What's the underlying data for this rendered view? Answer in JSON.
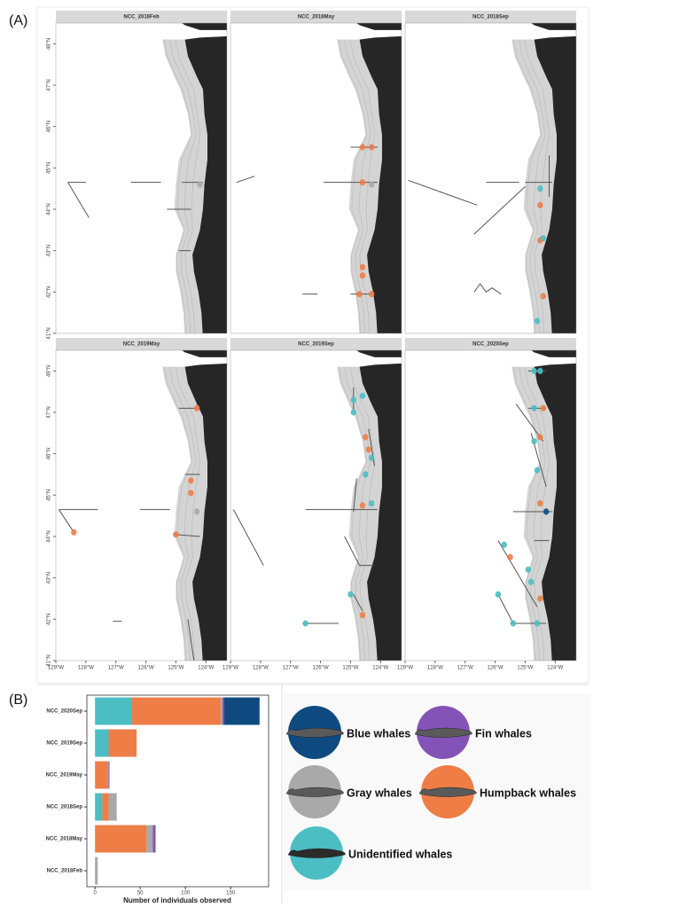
{
  "chart_data": [
    {
      "type": "map",
      "panel_label": "(A)",
      "xlim": [
        -129,
        -123.3
      ],
      "ylim": [
        41,
        48.5
      ],
      "xticks": [
        {
          "value": -129,
          "label": "129°W"
        },
        {
          "value": -128,
          "label": "128°W"
        },
        {
          "value": -127,
          "label": "127°W"
        },
        {
          "value": -126,
          "label": "126°W"
        },
        {
          "value": -125,
          "label": "125°W"
        },
        {
          "value": -124,
          "label": "124°W"
        }
      ],
      "yticks": [
        {
          "value": 41,
          "label": "41°N"
        },
        {
          "value": 42,
          "label": "42°N"
        },
        {
          "value": 43,
          "label": "43°N"
        },
        {
          "value": 44,
          "label": "44°N"
        },
        {
          "value": 45,
          "label": "45°N"
        },
        {
          "value": 46,
          "label": "46°N"
        },
        {
          "value": 47,
          "label": "47°N"
        },
        {
          "value": 48,
          "label": "48°N"
        }
      ],
      "land_color": "#262626",
      "shelf_color": "#d4d4d4",
      "facets": [
        {
          "title": "NCC_2018Feb",
          "x": [
            -124.2
          ],
          "y": [
            44.6
          ],
          "colors": [
            "#a9a9a9"
          ]
        },
        {
          "title": "NCC_2018May",
          "x": [
            -124.6,
            -124.3,
            -124.6,
            -124.3,
            -124.6,
            -124.6,
            -124.7,
            -124.3
          ],
          "y": [
            45.5,
            45.5,
            44.65,
            44.6,
            42.6,
            42.4,
            41.95,
            41.95
          ],
          "colors": [
            "#ee7d46",
            "#ee7d46",
            "#ee7d46",
            "#a9a9a9",
            "#ee7d46",
            "#ee7d46",
            "#ee7d46",
            "#ee7d46"
          ]
        },
        {
          "title": "NCC_2018Sep",
          "x": [
            -124.5,
            -124.5,
            -124.5,
            -124.4,
            -124.4,
            -124.6
          ],
          "y": [
            44.5,
            44.1,
            43.25,
            43.3,
            41.9,
            41.3
          ],
          "colors": [
            "#4bbec4",
            "#ee7d46",
            "#ee7d46",
            "#4bbec4",
            "#ee7d46",
            "#4bbec4"
          ]
        },
        {
          "title": "NCC_2019May",
          "x": [
            -124.3,
            -124.5,
            -124.5,
            -124.3,
            -125.0,
            -128.4
          ],
          "y": [
            47.1,
            45.35,
            45.05,
            44.6,
            44.05,
            44.1
          ],
          "colors": [
            "#ee7d46",
            "#ee7d46",
            "#ee7d46",
            "#a9a9a9",
            "#ee7d46",
            "#ee7d46"
          ]
        },
        {
          "title": "NCC_2019Sep",
          "x": [
            -124.6,
            -124.9,
            -124.9,
            -124.5,
            -124.4,
            -124.3,
            -124.5,
            -124.6,
            -124.3,
            -125.0,
            -124.6,
            -126.5
          ],
          "y": [
            47.4,
            47.3,
            47.0,
            46.4,
            46.1,
            45.9,
            45.5,
            44.75,
            44.8,
            42.6,
            42.1,
            41.9
          ],
          "colors": [
            "#4bbec4",
            "#4bbec4",
            "#4bbec4",
            "#ee7d46",
            "#ee7d46",
            "#4bbec4",
            "#4bbec4",
            "#ee7d46",
            "#4bbec4",
            "#4bbec4",
            "#ee7d46",
            "#4bbec4"
          ]
        },
        {
          "title": "NCC_2020Sep",
          "x": [
            -124.7,
            -124.5,
            -124.7,
            -124.4,
            -124.5,
            -124.7,
            -124.6,
            -124.5,
            -124.3,
            -125.7,
            -125.5,
            -124.9,
            -124.8,
            -124.5,
            -125.9,
            -125.4,
            -124.6
          ],
          "y": [
            48.0,
            48.0,
            47.1,
            47.1,
            46.4,
            46.3,
            45.6,
            44.8,
            44.6,
            43.8,
            43.5,
            43.2,
            42.9,
            42.5,
            42.6,
            41.9,
            41.9
          ],
          "colors": [
            "#4bbec4",
            "#4bbec4",
            "#4bbec4",
            "#ee7d46",
            "#ee7d46",
            "#4bbec4",
            "#4bbec4",
            "#ee7d46",
            "#0e4a80",
            "#4bbec4",
            "#ee7d46",
            "#4bbec4",
            "#4bbec4",
            "#ee7d46",
            "#4bbec4",
            "#4bbec4",
            "#4bbec4"
          ]
        }
      ]
    },
    {
      "type": "bar",
      "orientation": "horizontal",
      "stacked": true,
      "panel_label": "(B)",
      "xlabel": "Number of individuals observed",
      "categories": [
        "NCC_2020Sep",
        "NCC_2019Sep",
        "NCC_2019May",
        "NCC_2018Sep",
        "NCC_2018May",
        "NCC_2018Feb"
      ],
      "xlim": [
        -9,
        192
      ],
      "xticks": [
        0,
        50,
        100,
        150
      ],
      "series": [
        {
          "name": "Unidentified whales",
          "color": "#4bbec4",
          "values": [
            41,
            15,
            0,
            8,
            0,
            0
          ]
        },
        {
          "name": "Humpback whales",
          "color": "#ee7d46",
          "values": [
            98,
            31,
            14,
            7,
            57,
            0
          ]
        },
        {
          "name": "Gray whales",
          "color": "#a9a9a9",
          "values": [
            2,
            0,
            1,
            9,
            7,
            3
          ]
        },
        {
          "name": "Fin whales",
          "color": "#8453b8",
          "values": [
            2,
            0,
            1,
            0,
            3,
            0
          ]
        },
        {
          "name": "Blue whales",
          "color": "#0e4a80",
          "values": [
            39,
            0,
            0,
            0,
            0,
            0
          ]
        }
      ]
    }
  ]
}
